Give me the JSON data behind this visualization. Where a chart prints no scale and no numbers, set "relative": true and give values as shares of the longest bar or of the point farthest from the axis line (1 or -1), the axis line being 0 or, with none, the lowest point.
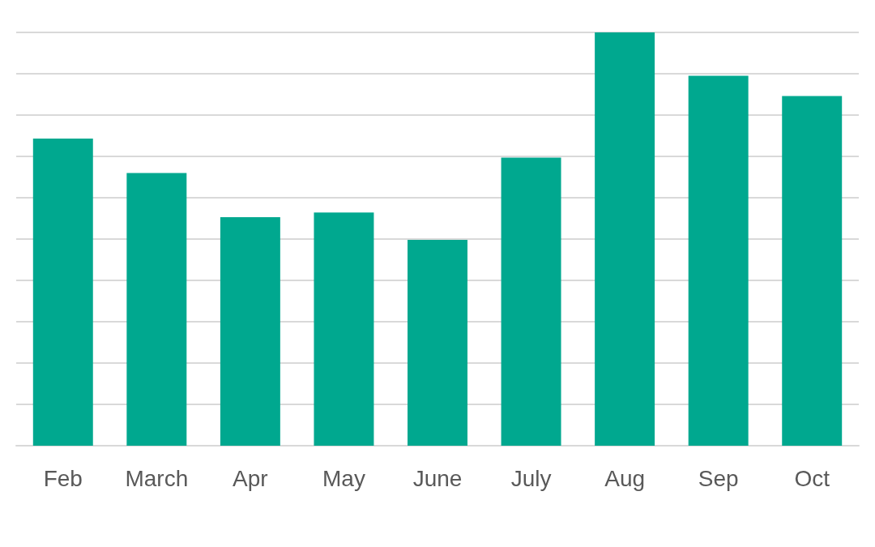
{
  "chart_data": {
    "type": "bar",
    "relative": true,
    "categories": [
      "Feb",
      "March",
      "Apr",
      "May",
      "June",
      "July",
      "Aug",
      "Sep",
      "Oct"
    ],
    "values": [
      0.743,
      0.66,
      0.553,
      0.564,
      0.498,
      0.697,
      1,
      0.895,
      0.846
    ],
    "color": "#00a88f",
    "grid": "y"
  }
}
